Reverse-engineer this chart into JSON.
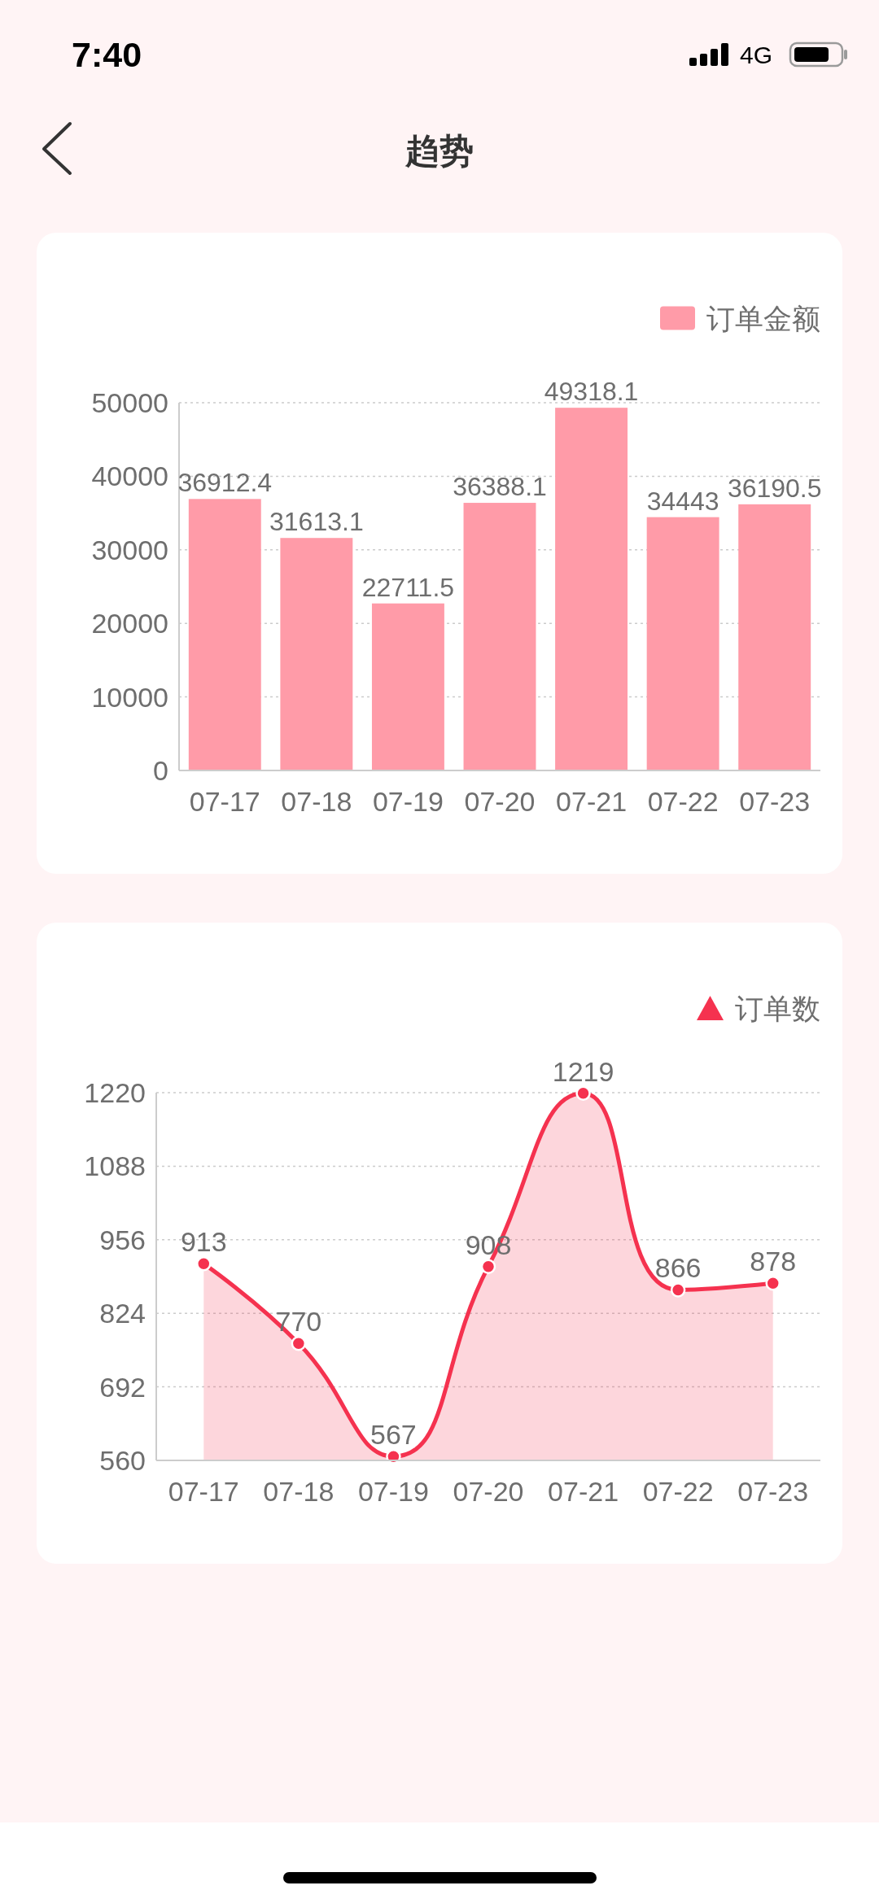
{
  "chart_data": [
    {
      "type": "other",
      "title": "趋势",
      "annotations": [
        "7:40",
        "4G"
      ]
    },
    {
      "type": "bar",
      "categories": [
        "07-17",
        "07-18",
        "07-19",
        "07-20",
        "07-21",
        "07-22",
        "07-23"
      ],
      "series": [
        {
          "name": "订单金额",
          "color": "#ff9ba8",
          "values": [
            36912.4,
            31613.1,
            22711.5,
            36388.1,
            49318.1,
            34443,
            36190.5
          ]
        }
      ],
      "ylim": [
        0,
        50000
      ],
      "yticks": [
        0,
        10000,
        20000,
        30000,
        40000,
        50000
      ],
      "grid": "y",
      "legend": "top right",
      "data_labels": true
    },
    {
      "type": "area",
      "categories": [
        "07-17",
        "07-18",
        "07-19",
        "07-20",
        "07-21",
        "07-22",
        "07-23"
      ],
      "series": [
        {
          "name": "订单数",
          "color": "#f5324f",
          "values": [
            913,
            770,
            567,
            908,
            1219,
            866,
            878
          ]
        }
      ],
      "ylim": [
        560,
        1220
      ],
      "yticks": [
        560,
        692,
        824,
        956,
        1088,
        1220
      ],
      "grid": "y",
      "legend": "top right",
      "marker": "circle",
      "data_labels": true
    }
  ]
}
